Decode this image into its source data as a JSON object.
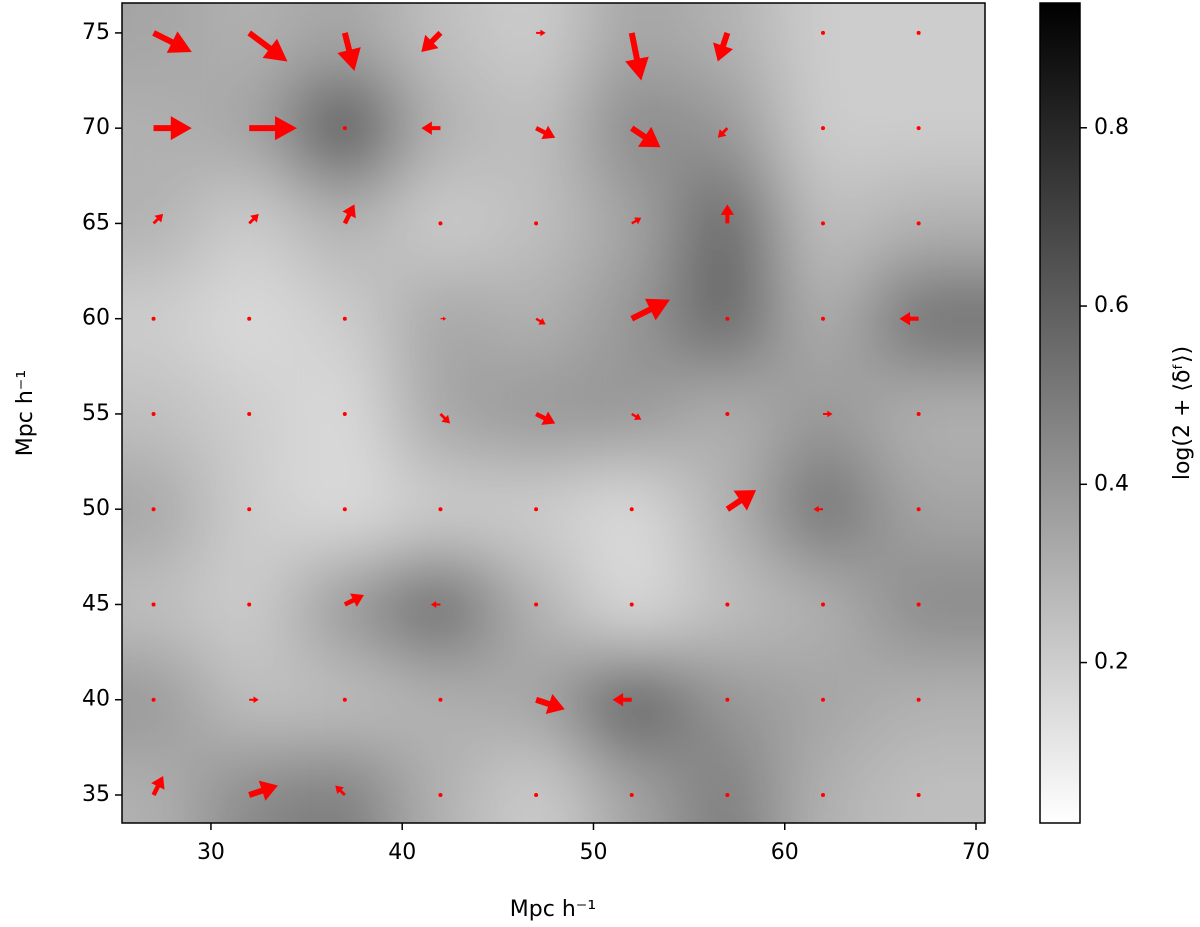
{
  "chart_data": {
    "type": "quiver",
    "xlabel": "Mpc h⁻¹",
    "ylabel": "Mpc h⁻¹",
    "colorbar_label": "log(2 + ⟨δᶠ⟩)",
    "xlim": [
      25.35,
      70.47
    ],
    "ylim": [
      33.53,
      76.57
    ],
    "xticks": [
      30,
      40,
      50,
      60,
      70
    ],
    "yticks": [
      35,
      40,
      45,
      50,
      55,
      60,
      65,
      70,
      75
    ],
    "clim": [
      0.02,
      0.94
    ],
    "cticks": [
      0.2,
      0.4,
      0.6,
      0.8
    ],
    "colormap": "gray_r",
    "arrow_color": "#ff0000",
    "x": [
      27,
      32,
      37,
      42,
      47,
      52,
      57,
      62,
      67
    ],
    "y": [
      35,
      40,
      45,
      50,
      55,
      60,
      65,
      70,
      75
    ],
    "z": [
      [
        0.3,
        0.45,
        0.5,
        0.3,
        0.2,
        0.35,
        0.5,
        0.3,
        0.25
      ],
      [
        0.4,
        0.25,
        0.25,
        0.3,
        0.35,
        0.65,
        0.4,
        0.35,
        0.3
      ],
      [
        0.25,
        0.2,
        0.4,
        0.6,
        0.3,
        0.15,
        0.25,
        0.3,
        0.45
      ],
      [
        0.35,
        0.2,
        0.15,
        0.2,
        0.2,
        0.15,
        0.3,
        0.55,
        0.35
      ],
      [
        0.25,
        0.2,
        0.15,
        0.35,
        0.4,
        0.4,
        0.3,
        0.4,
        0.3
      ],
      [
        0.2,
        0.15,
        0.2,
        0.35,
        0.3,
        0.4,
        0.6,
        0.3,
        0.55
      ],
      [
        0.3,
        0.2,
        0.3,
        0.2,
        0.25,
        0.35,
        0.6,
        0.25,
        0.3
      ],
      [
        0.3,
        0.35,
        0.7,
        0.3,
        0.25,
        0.45,
        0.4,
        0.2,
        0.2
      ],
      [
        0.35,
        0.3,
        0.35,
        0.25,
        0.2,
        0.35,
        0.3,
        0.2,
        0.2
      ]
    ],
    "u": [
      [
        0.5,
        1.5,
        -0.5,
        0,
        0,
        0,
        0,
        0,
        0
      ],
      [
        0,
        0.5,
        0,
        0,
        1.5,
        -1,
        0,
        0,
        0
      ],
      [
        0,
        0,
        1,
        -0.5,
        0,
        0,
        0,
        0,
        0
      ],
      [
        0,
        0,
        0,
        0,
        0,
        0,
        1.5,
        -0.5,
        0
      ],
      [
        0,
        0,
        0,
        0.5,
        1,
        0.5,
        0,
        0.5,
        0
      ],
      [
        0,
        0,
        0,
        0.3,
        0.5,
        2,
        0,
        0,
        -1
      ],
      [
        0.5,
        0.5,
        0.5,
        0,
        0,
        0.5,
        0,
        0,
        0
      ],
      [
        2,
        2.5,
        0,
        -1,
        1,
        1.5,
        -0.5,
        0,
        0
      ],
      [
        2,
        2,
        0.5,
        -1,
        0.5,
        0.5,
        -0.5,
        0,
        0
      ]
    ],
    "v": [
      [
        1,
        0.5,
        0.5,
        0,
        0,
        0,
        0,
        0,
        0
      ],
      [
        0,
        0,
        0,
        0,
        -0.5,
        0,
        0,
        0,
        0
      ],
      [
        0,
        0,
        0.5,
        0,
        0,
        0,
        0,
        0,
        0
      ],
      [
        0,
        0,
        0,
        0,
        0,
        0,
        1,
        0,
        0
      ],
      [
        0,
        0,
        0,
        -0.5,
        -0.5,
        -0.3,
        0,
        0,
        0
      ],
      [
        0,
        0,
        0,
        0,
        -0.3,
        1,
        0,
        0,
        0
      ],
      [
        0.5,
        0.5,
        1,
        0,
        0,
        0.3,
        1,
        0,
        0
      ],
      [
        0,
        0,
        0,
        0,
        -0.5,
        -1,
        -0.5,
        0,
        0
      ],
      [
        -1,
        -1.5,
        -2,
        -1,
        0,
        -2.5,
        -1.5,
        0,
        0
      ]
    ]
  }
}
